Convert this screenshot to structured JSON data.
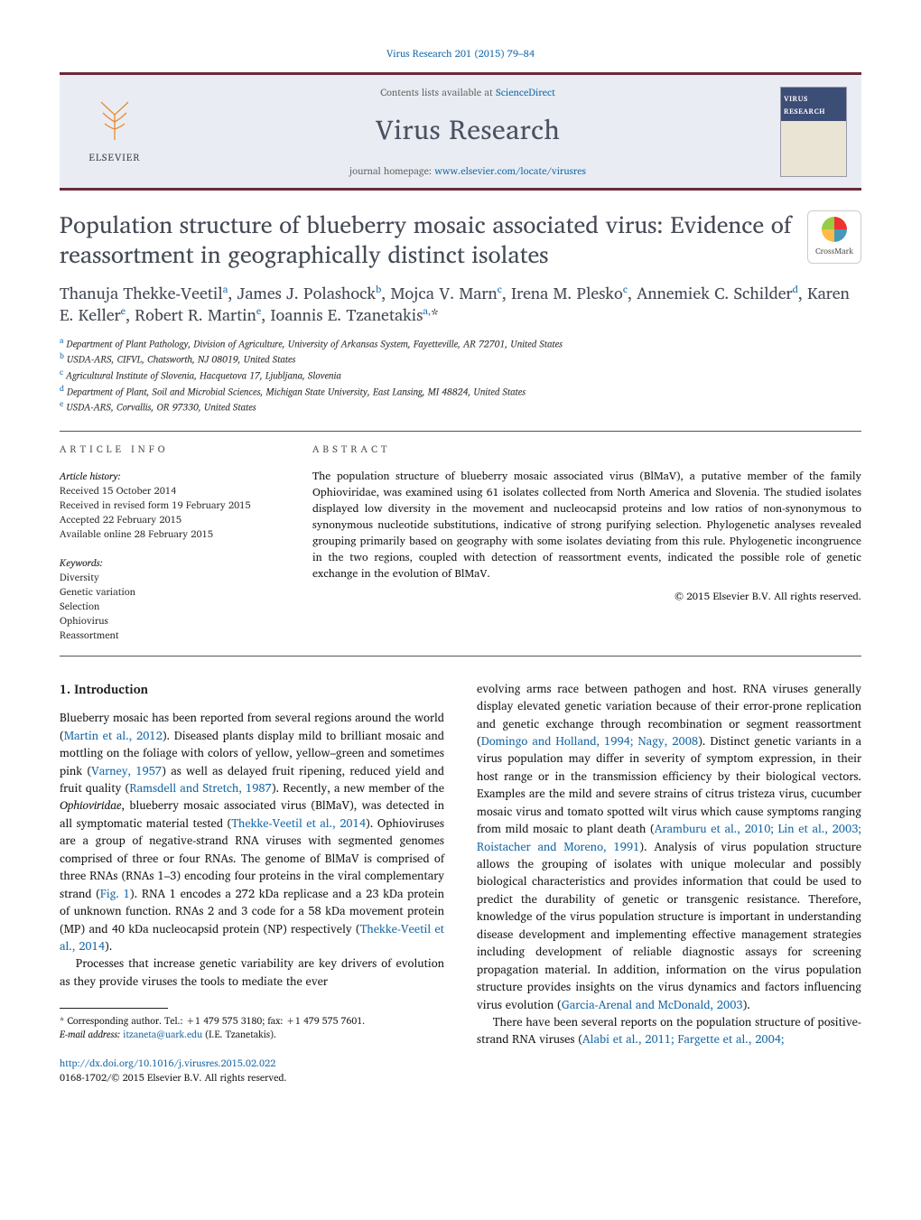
{
  "top_citation": "Virus Research 201 (2015) 79–84",
  "header": {
    "contents_line_pre": "Contents lists available at ",
    "contents_link": "ScienceDirect",
    "journal": "Virus Research",
    "homepage_pre": "journal homepage: ",
    "homepage_link": "www.elsevier.com/locate/virusres",
    "publisher_word": "ELSEVIER",
    "cover_label": "VIRUS RESEARCH",
    "colors": {
      "band_bg": "#e9edf3",
      "band_border": "#6b2a3a",
      "orange": "#ea8a2f",
      "link": "#1a6aa8",
      "heading": "#444a55"
    }
  },
  "crossmark_label": "CrossMark",
  "title": "Population structure of blueberry mosaic associated virus: Evidence of reassortment in geographically distinct isolates",
  "authors_html": "Thanuja Thekke-Veetil<sup>a</sup>, James J. Polashock<sup>b</sup>, Mojca V. Marn<sup>c</sup>, Irena M. Plesko<sup>c</sup>, Annemiek C. Schilder<sup>d</sup>, Karen E. Keller<sup>e</sup>, Robert R. Martin<sup>e</sup>, Ioannis E. Tzanetakis<sup>a,</sup>*",
  "affiliations": [
    {
      "sup": "a",
      "text": "Department of Plant Pathology, Division of Agriculture, University of Arkansas System, Fayetteville, AR 72701, United States"
    },
    {
      "sup": "b",
      "text": "USDA-ARS, CIFVL, Chatsworth, NJ 08019, United States"
    },
    {
      "sup": "c",
      "text": "Agricultural Institute of Slovenia, Hacquetova 17, Ljubljana, Slovenia"
    },
    {
      "sup": "d",
      "text": "Department of Plant, Soil and Microbial Sciences, Michigan State University, East Lansing, MI 48824, United States"
    },
    {
      "sup": "e",
      "text": "USDA-ARS, Corvallis, OR 97330, United States"
    }
  ],
  "article_info_label": "ARTICLE INFO",
  "abstract_label": "ABSTRACT",
  "history_label": "Article history:",
  "history": [
    "Received 15 October 2014",
    "Received in revised form 19 February 2015",
    "Accepted 22 February 2015",
    "Available online 28 February 2015"
  ],
  "keywords_label": "Keywords:",
  "keywords": [
    "Diversity",
    "Genetic variation",
    "Selection",
    "Ophiovirus",
    "Reassortment"
  ],
  "abstract": "The population structure of blueberry mosaic associated virus (BlMaV), a putative member of the family Ophioviridae, was examined using 61 isolates collected from North America and Slovenia. The studied isolates displayed low diversity in the movement and nucleocapsid proteins and low ratios of non-synonymous to synonymous nucleotide substitutions, indicative of strong purifying selection. Phylogenetic analyses revealed grouping primarily based on geography with some isolates deviating from this rule. Phylogenetic incongruence in the two regions, coupled with detection of reassortment events, indicated the possible role of genetic exchange in the evolution of BlMaV.",
  "copyright": "© 2015 Elsevier B.V. All rights reserved.",
  "section_heading": "1. Introduction",
  "col_left_paragraphs": [
    "Blueberry mosaic has been reported from several regions around the world (<a class=\"link\">Martin et al., 2012</a>). Diseased plants display mild to brilliant mosaic and mottling on the foliage with colors of yellow, yellow–green and sometimes pink (<a class=\"link\">Varney, 1957</a>) as well as delayed fruit ripening, reduced yield and fruit quality (<a class=\"link\">Ramsdell and Stretch, 1987</a>). Recently, a new member of the <i>Ophioviridae</i>, blueberry mosaic associated virus (BlMaV), was detected in all symptomatic material tested (<a class=\"link\">Thekke-Veetil et al., 2014</a>). Ophioviruses are a group of negative-strand RNA viruses with segmented genomes comprised of three or four RNAs. The genome of BlMaV is comprised of three RNAs (RNAs 1–3) encoding four proteins in the viral complementary strand (<a class=\"link\">Fig. 1</a>). RNA 1 encodes a 272 kDa replicase and a 23 kDa protein of unknown function. RNAs 2 and 3 code for a 58 kDa movement protein (MP) and 40 kDa nucleocapsid protein (NP) respectively (<a class=\"link\">Thekke-Veetil et al., 2014</a>).",
    "Processes that increase genetic variability are key drivers of evolution as they provide viruses the tools to mediate the ever"
  ],
  "col_right_paragraphs": [
    "evolving arms race between pathogen and host. RNA viruses generally display elevated genetic variation because of their error-prone replication and genetic exchange through recombination or segment reassortment (<a class=\"link\">Domingo and Holland, 1994; Nagy, 2008</a>). Distinct genetic variants in a virus population may differ in severity of symptom expression, in their host range or in the transmission efficiency by their biological vectors. Examples are the mild and severe strains of citrus tristeza virus, cucumber mosaic virus and tomato spotted wilt virus which cause symptoms ranging from mild mosaic to plant death (<a class=\"link\">Aramburu et al., 2010; Lin et al., 2003; Roistacher and Moreno, 1991</a>). Analysis of virus population structure allows the grouping of isolates with unique molecular and possibly biological characteristics and provides information that could be used to predict the durability of genetic or transgenic resistance. Therefore, knowledge of the virus population structure is important in understanding disease development and implementing effective management strategies including development of reliable diagnostic assays for screening propagation material. In addition, information on the virus population structure provides insights on the virus dynamics and factors influencing virus evolution (<a class=\"link\">Garcia-Arenal and McDonald, 2003</a>).",
    "There have been several reports on the population structure of positive-strand RNA viruses (<a class=\"link\">Alabi et al., 2011; Fargette et al., 2004;</a>"
  ],
  "footnote": {
    "corresp": "* Corresponding author. Tel.: +1 479 575 3180; fax: +1 479 575 7601.",
    "email_label": "E-mail address: ",
    "email": "itzaneta@uark.edu",
    "email_tail": " (I.E. Tzanetakis)."
  },
  "doi": {
    "url": "http://dx.doi.org/10.1016/j.virusres.2015.02.022",
    "issn_line": "0168-1702/© 2015 Elsevier B.V. All rights reserved."
  }
}
